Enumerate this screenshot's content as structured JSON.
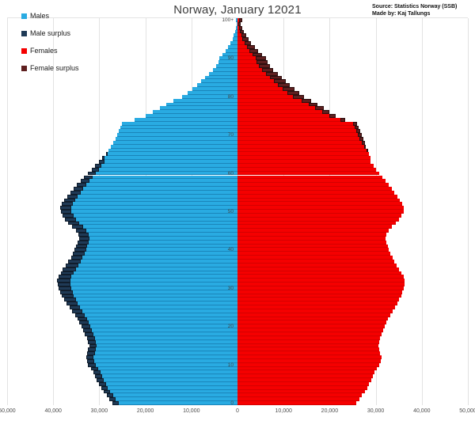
{
  "title": "Norway, January 12021",
  "source": {
    "line1": "Source: Statistics Norway (SSB)",
    "line2": "Made by: Kaj Tallungs"
  },
  "legend": {
    "items": [
      {
        "label": "Males",
        "color": "#29abe2"
      },
      {
        "label": "Male surplus",
        "color": "#1f3a56"
      },
      {
        "label": "Females",
        "color": "#f50000"
      },
      {
        "label": "Female surplus",
        "color": "#5e1f1f"
      }
    ]
  },
  "chart_data": {
    "type": "bar",
    "subtype": "population-pyramid",
    "title": "Norway, January 12021",
    "grid": true,
    "legend_position": "top-left",
    "x_axis": {
      "max_per_side": 50000,
      "tick_step": 10000,
      "tick_labels": [
        "50,000",
        "40,000",
        "30,000",
        "20,000",
        "10,000",
        "0",
        "10,000",
        "20,000",
        "30,000",
        "40,000",
        "50,000"
      ]
    },
    "y_axis": {
      "min_age": 0,
      "max_age": "100+",
      "tick_labels": [
        "0",
        "10",
        "20",
        "30",
        "40",
        "50",
        "60",
        "70",
        "80",
        "90",
        "100+"
      ]
    },
    "ages_note": "array index = single year of age, last entry = 100+",
    "series": [
      {
        "name": "Males",
        "color": "#29abe2",
        "surplus_color": "#1f3a56",
        "values": [
          27200,
          27800,
          28400,
          29000,
          29600,
          30100,
          30500,
          30900,
          31300,
          31800,
          32400,
          32700,
          32900,
          32700,
          32400,
          32200,
          32400,
          32700,
          33100,
          33500,
          33900,
          34300,
          34700,
          35300,
          35900,
          36500,
          37100,
          37600,
          38100,
          38500,
          38800,
          39000,
          39100,
          38900,
          38400,
          37900,
          37300,
          36700,
          36100,
          35700,
          35400,
          35100,
          34700,
          34400,
          34600,
          35100,
          35900,
          36700,
          37500,
          38000,
          38400,
          38500,
          38200,
          37700,
          37000,
          36300,
          35600,
          34900,
          34100,
          33300,
          32500,
          31700,
          30900,
          30100,
          29300,
          28600,
          28000,
          27500,
          27000,
          26500,
          26100,
          25700,
          25400,
          25100,
          22300,
          20000,
          18400,
          16900,
          15500,
          13900,
          12100,
          10900,
          9800,
          8800,
          7900,
          7100,
          6200,
          5300,
          4600,
          4200,
          3900,
          3200,
          2600,
          2000,
          1500,
          1100,
          800,
          550,
          380,
          250,
          300
        ]
      },
      {
        "name": "Females",
        "color": "#f50000",
        "surplus_color": "#5e1f1f",
        "values": [
          25800,
          26400,
          27000,
          27600,
          28100,
          28600,
          29000,
          29400,
          29800,
          30200,
          30800,
          31100,
          31200,
          31000,
          30800,
          30600,
          30800,
          31000,
          31300,
          31600,
          32000,
          32300,
          32700,
          33200,
          33700,
          34200,
          34700,
          35100,
          35500,
          35800,
          36000,
          36200,
          36200,
          36000,
          35600,
          35100,
          34600,
          34100,
          33600,
          33200,
          32900,
          32600,
          32300,
          32100,
          32300,
          32800,
          33500,
          34300,
          35100,
          35600,
          36000,
          36100,
          35800,
          35300,
          34700,
          34100,
          33500,
          32900,
          32200,
          31500,
          30800,
          30100,
          29500,
          28900,
          28800,
          28500,
          28200,
          27900,
          27600,
          27300,
          27000,
          26600,
          26300,
          26000,
          23300,
          21300,
          20000,
          18700,
          17400,
          16000,
          14500,
          13400,
          12400,
          11400,
          10500,
          9700,
          8800,
          7800,
          7000,
          6500,
          6200,
          5300,
          4500,
          3700,
          3000,
          2400,
          1900,
          1400,
          1050,
          750,
          1050
        ]
      }
    ],
    "surplus_note": "surplus blocks drawn at bar tips = |males - females| per age"
  }
}
